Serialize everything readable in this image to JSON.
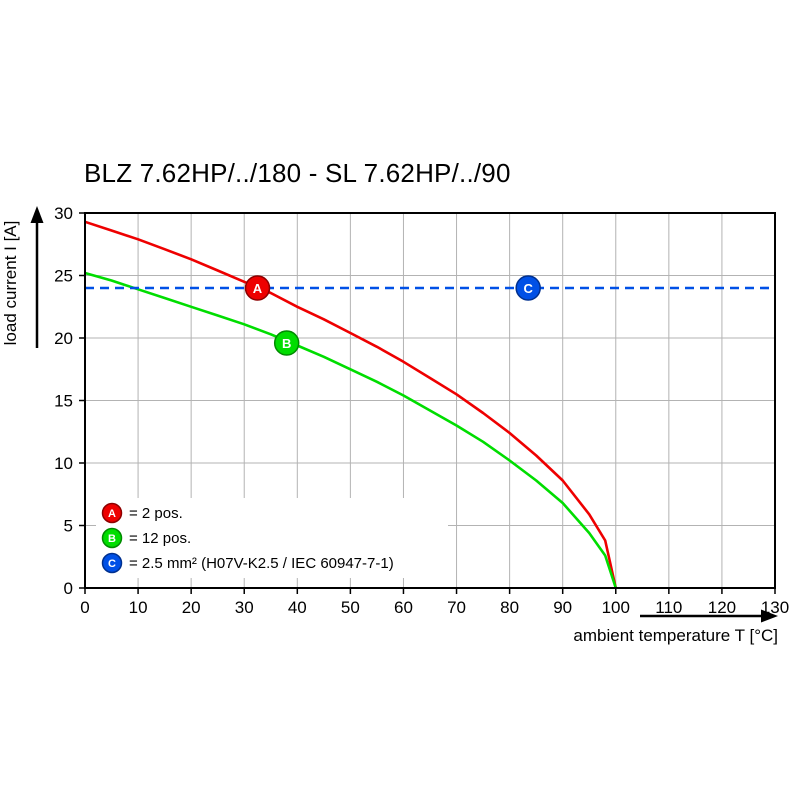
{
  "chart_data": {
    "type": "line",
    "title": "BLZ 7.62HP/../180 - SL 7.62HP/../90",
    "xlabel": "ambient temperature T [°C]",
    "ylabel": "load current I [A]",
    "xlim": [
      0,
      130
    ],
    "ylim": [
      0,
      30
    ],
    "x_ticks": [
      0,
      10,
      20,
      30,
      40,
      50,
      60,
      70,
      80,
      90,
      100,
      110,
      120,
      130
    ],
    "y_ticks": [
      0,
      5,
      10,
      15,
      20,
      25,
      30
    ],
    "grid": true,
    "grid_color": "#b3b3b3",
    "legend_position": "bottom-left",
    "series": [
      {
        "name": "A",
        "label": "= 2 pos.",
        "color": "#ee0000",
        "badge_stroke": "#8d0000",
        "style": "solid",
        "points": [
          [
            0,
            29.3
          ],
          [
            5,
            28.6
          ],
          [
            10,
            27.9
          ],
          [
            15,
            27.1
          ],
          [
            20,
            26.3
          ],
          [
            25,
            25.4
          ],
          [
            30,
            24.5
          ],
          [
            35,
            23.6
          ],
          [
            40,
            22.5
          ],
          [
            45,
            21.5
          ],
          [
            50,
            20.4
          ],
          [
            55,
            19.3
          ],
          [
            60,
            18.1
          ],
          [
            65,
            16.8
          ],
          [
            70,
            15.5
          ],
          [
            75,
            14.0
          ],
          [
            80,
            12.4
          ],
          [
            85,
            10.6
          ],
          [
            90,
            8.6
          ],
          [
            95,
            5.9
          ],
          [
            98,
            3.8
          ],
          [
            100,
            0
          ]
        ]
      },
      {
        "name": "B",
        "label": "= 12 pos.",
        "color": "#00dd00",
        "badge_stroke": "#008a00",
        "style": "solid",
        "points": [
          [
            0,
            25.2
          ],
          [
            5,
            24.6
          ],
          [
            10,
            23.9
          ],
          [
            15,
            23.2
          ],
          [
            20,
            22.5
          ],
          [
            25,
            21.8
          ],
          [
            30,
            21.1
          ],
          [
            35,
            20.3
          ],
          [
            40,
            19.4
          ],
          [
            45,
            18.5
          ],
          [
            50,
            17.5
          ],
          [
            55,
            16.5
          ],
          [
            60,
            15.4
          ],
          [
            65,
            14.2
          ],
          [
            70,
            13.0
          ],
          [
            75,
            11.7
          ],
          [
            80,
            10.2
          ],
          [
            85,
            8.6
          ],
          [
            90,
            6.8
          ],
          [
            95,
            4.4
          ],
          [
            98,
            2.6
          ],
          [
            100,
            0
          ]
        ]
      },
      {
        "name": "C",
        "label": "= 2.5 mm² (H07V-K2.5 / IEC 60947-7-1)",
        "color": "#0050e6",
        "badge_stroke": "#00308f",
        "style": "dashed",
        "points": [
          [
            0,
            24
          ],
          [
            130,
            24
          ]
        ]
      }
    ],
    "markers": [
      {
        "series": "A",
        "x": 32.5,
        "y": 24
      },
      {
        "series": "B",
        "x": 38,
        "y": 19.6
      },
      {
        "series": "C",
        "x": 83.5,
        "y": 24
      }
    ]
  }
}
